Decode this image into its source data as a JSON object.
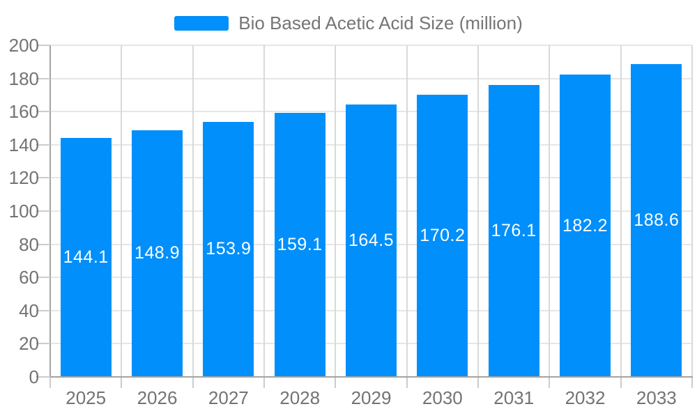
{
  "legend": {
    "label": "Bio Based Acetic Acid Size (million)"
  },
  "chart_data": {
    "type": "bar",
    "title": "",
    "legend_position": "top",
    "grid": true,
    "categories": [
      "2025",
      "2026",
      "2027",
      "2028",
      "2029",
      "2030",
      "2031",
      "2032",
      "2033"
    ],
    "series": [
      {
        "name": "Bio Based Acetic Acid Size (million)",
        "values": [
          144.1,
          148.9,
          153.9,
          159.1,
          164.5,
          170.2,
          176.1,
          182.2,
          188.6
        ]
      }
    ],
    "data_labels": [
      "144.1",
      "148.9",
      "153.9",
      "159.1",
      "164.5",
      "170.2",
      "176.1",
      "182.2",
      "188.6"
    ],
    "xlabel": "",
    "ylabel": "",
    "ylim": [
      0,
      200
    ],
    "y_ticks": [
      0,
      20,
      40,
      60,
      80,
      100,
      120,
      140,
      160,
      180,
      200
    ],
    "colors": {
      "bar": "#008FFB",
      "data_label_text": "#FFFFFF",
      "axis_text": "#737373",
      "legend_text": "#757575",
      "grid_horizontal": "#e6e6e6",
      "grid_vertical": "#d9d9d9",
      "axis_line": "#a3a3a3",
      "tick": "#cccccc"
    }
  }
}
